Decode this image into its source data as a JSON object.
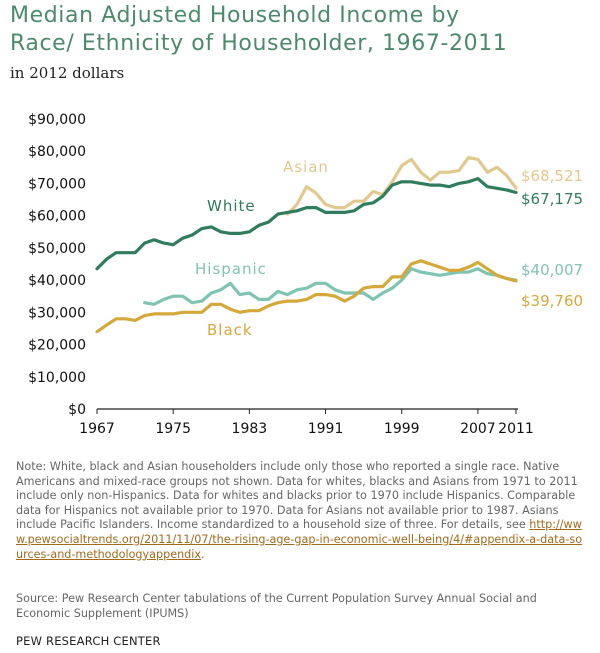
{
  "chart_data": {
    "type": "line",
    "title_lines": [
      "Median Adjusted Household Income by",
      "Race/ Ethnicity of Householder, 1967-2011"
    ],
    "subtitle": "in 2012 dollars",
    "xlabel": "",
    "ylabel": "",
    "xlim": [
      1967,
      2011
    ],
    "ylim": [
      0,
      90000
    ],
    "x_ticks": [
      1967,
      1975,
      1983,
      1991,
      1999,
      2007,
      2011
    ],
    "y_ticks": [
      0,
      10000,
      20000,
      30000,
      40000,
      50000,
      60000,
      70000,
      80000,
      90000
    ],
    "y_tick_labels": [
      "$0",
      "$10,000",
      "$20,000",
      "$30,000",
      "$40,000",
      "$50,000",
      "$60,000",
      "$70,000",
      "$80,000",
      "$90,000"
    ],
    "grid": false,
    "series": [
      {
        "name": "Asian",
        "color": "#e3c88e",
        "end_label": "$68,521",
        "points": [
          [
            1987,
            60500
          ],
          [
            1988,
            63500
          ],
          [
            1989,
            69000
          ],
          [
            1990,
            67000
          ],
          [
            1991,
            63500
          ],
          [
            1992,
            62500
          ],
          [
            1993,
            62500
          ],
          [
            1994,
            64500
          ],
          [
            1995,
            64500
          ],
          [
            1996,
            67500
          ],
          [
            1997,
            66500
          ],
          [
            1998,
            70500
          ],
          [
            1999,
            75500
          ],
          [
            2000,
            77500
          ],
          [
            2001,
            73500
          ],
          [
            2002,
            71000
          ],
          [
            2003,
            73500
          ],
          [
            2004,
            73500
          ],
          [
            2005,
            74000
          ],
          [
            2006,
            78000
          ],
          [
            2007,
            77500
          ],
          [
            2008,
            73500
          ],
          [
            2009,
            75000
          ],
          [
            2010,
            72500
          ],
          [
            2011,
            68521
          ]
        ]
      },
      {
        "name": "White",
        "color": "#2f7d5c",
        "end_label": "$67,175",
        "points": [
          [
            1967,
            43500
          ],
          [
            1968,
            46500
          ],
          [
            1969,
            48500
          ],
          [
            1970,
            48500
          ],
          [
            1971,
            48500
          ],
          [
            1972,
            51500
          ],
          [
            1973,
            52500
          ],
          [
            1974,
            51500
          ],
          [
            1975,
            51000
          ],
          [
            1976,
            53000
          ],
          [
            1977,
            54000
          ],
          [
            1978,
            56000
          ],
          [
            1979,
            56500
          ],
          [
            1980,
            55000
          ],
          [
            1981,
            54500
          ],
          [
            1982,
            54500
          ],
          [
            1983,
            55000
          ],
          [
            1984,
            57000
          ],
          [
            1985,
            58000
          ],
          [
            1986,
            60500
          ],
          [
            1987,
            61000
          ],
          [
            1988,
            61500
          ],
          [
            1989,
            62500
          ],
          [
            1990,
            62500
          ],
          [
            1991,
            61000
          ],
          [
            1992,
            61000
          ],
          [
            1993,
            61000
          ],
          [
            1994,
            61500
          ],
          [
            1995,
            63500
          ],
          [
            1996,
            64000
          ],
          [
            1997,
            66000
          ],
          [
            1998,
            69500
          ],
          [
            1999,
            70500
          ],
          [
            2000,
            70500
          ],
          [
            2001,
            70000
          ],
          [
            2002,
            69500
          ],
          [
            2003,
            69500
          ],
          [
            2004,
            69000
          ],
          [
            2005,
            70000
          ],
          [
            2006,
            70500
          ],
          [
            2007,
            71500
          ],
          [
            2008,
            69000
          ],
          [
            2009,
            68500
          ],
          [
            2010,
            68000
          ],
          [
            2011,
            67175
          ]
        ]
      },
      {
        "name": "Hispanic",
        "color": "#7fc4b3",
        "end_label": "$40,007",
        "points": [
          [
            1972,
            33000
          ],
          [
            1973,
            32500
          ],
          [
            1974,
            34000
          ],
          [
            1975,
            35000
          ],
          [
            1976,
            35000
          ],
          [
            1977,
            33000
          ],
          [
            1978,
            33500
          ],
          [
            1979,
            36000
          ],
          [
            1980,
            37000
          ],
          [
            1981,
            39000
          ],
          [
            1982,
            35500
          ],
          [
            1983,
            36000
          ],
          [
            1984,
            34000
          ],
          [
            1985,
            34000
          ],
          [
            1986,
            36500
          ],
          [
            1987,
            35500
          ],
          [
            1988,
            37000
          ],
          [
            1989,
            37500
          ],
          [
            1990,
            39000
          ],
          [
            1991,
            39000
          ],
          [
            1992,
            37000
          ],
          [
            1993,
            36000
          ],
          [
            1994,
            36000
          ],
          [
            1995,
            36000
          ],
          [
            1996,
            34000
          ],
          [
            1997,
            36000
          ],
          [
            1998,
            37500
          ],
          [
            1999,
            40000
          ],
          [
            2000,
            43500
          ],
          [
            2001,
            42500
          ],
          [
            2002,
            42000
          ],
          [
            2003,
            41500
          ],
          [
            2004,
            42000
          ],
          [
            2005,
            42500
          ],
          [
            2006,
            42500
          ],
          [
            2007,
            43500
          ],
          [
            2008,
            42000
          ],
          [
            2009,
            41500
          ],
          [
            2010,
            40500
          ],
          [
            2011,
            40007
          ]
        ]
      },
      {
        "name": "Black",
        "color": "#d5a83a",
        "end_label": "$39,760",
        "points": [
          [
            1967,
            24000
          ],
          [
            1968,
            26000
          ],
          [
            1969,
            28000
          ],
          [
            1970,
            28000
          ],
          [
            1971,
            27500
          ],
          [
            1972,
            29000
          ],
          [
            1973,
            29500
          ],
          [
            1974,
            29500
          ],
          [
            1975,
            29500
          ],
          [
            1976,
            30000
          ],
          [
            1977,
            30000
          ],
          [
            1978,
            30000
          ],
          [
            1979,
            32500
          ],
          [
            1980,
            32500
          ],
          [
            1981,
            31000
          ],
          [
            1982,
            30000
          ],
          [
            1983,
            30500
          ],
          [
            1984,
            30500
          ],
          [
            1985,
            32000
          ],
          [
            1986,
            33000
          ],
          [
            1987,
            33500
          ],
          [
            1988,
            33500
          ],
          [
            1989,
            34000
          ],
          [
            1990,
            35500
          ],
          [
            1991,
            35500
          ],
          [
            1992,
            35000
          ],
          [
            1993,
            33500
          ],
          [
            1994,
            35000
          ],
          [
            1995,
            37500
          ],
          [
            1996,
            38000
          ],
          [
            1997,
            38000
          ],
          [
            1998,
            41000
          ],
          [
            1999,
            41000
          ],
          [
            2000,
            45000
          ],
          [
            2001,
            46000
          ],
          [
            2002,
            45000
          ],
          [
            2003,
            44000
          ],
          [
            2004,
            43000
          ],
          [
            2005,
            43000
          ],
          [
            2006,
            44000
          ],
          [
            2007,
            45500
          ],
          [
            2008,
            43500
          ],
          [
            2009,
            41500
          ],
          [
            2010,
            40500
          ],
          [
            2011,
            39760
          ]
        ]
      }
    ]
  },
  "note": {
    "text": "Note: White, black and Asian householders include only those who reported a single race. Native Americans and mixed-race groups not shown. Data for whites, blacks and Asians from 1971 to 2011 include only non-Hispanics. Data for whites and blacks prior to 1970 include Hispanics. Comparable data for Hispanics not available prior to 1970. Data for Asians not available prior to 1987. Asians include Pacific Islanders. Income standardized to a household size of three. For details, see ",
    "link_text": "http://www.pewsocialtrends.org/2011/11/07/the-rising-age-gap-in-economic-well-being/4/#appendix-a-data-sources-and-methodologyappendix",
    "after_link": "."
  },
  "source": "Source: Pew Research Center tabulations of the Current Population Survey Annual Social and Economic Supplement (IPUMS)",
  "footer": "PEW RESEARCH CENTER"
}
